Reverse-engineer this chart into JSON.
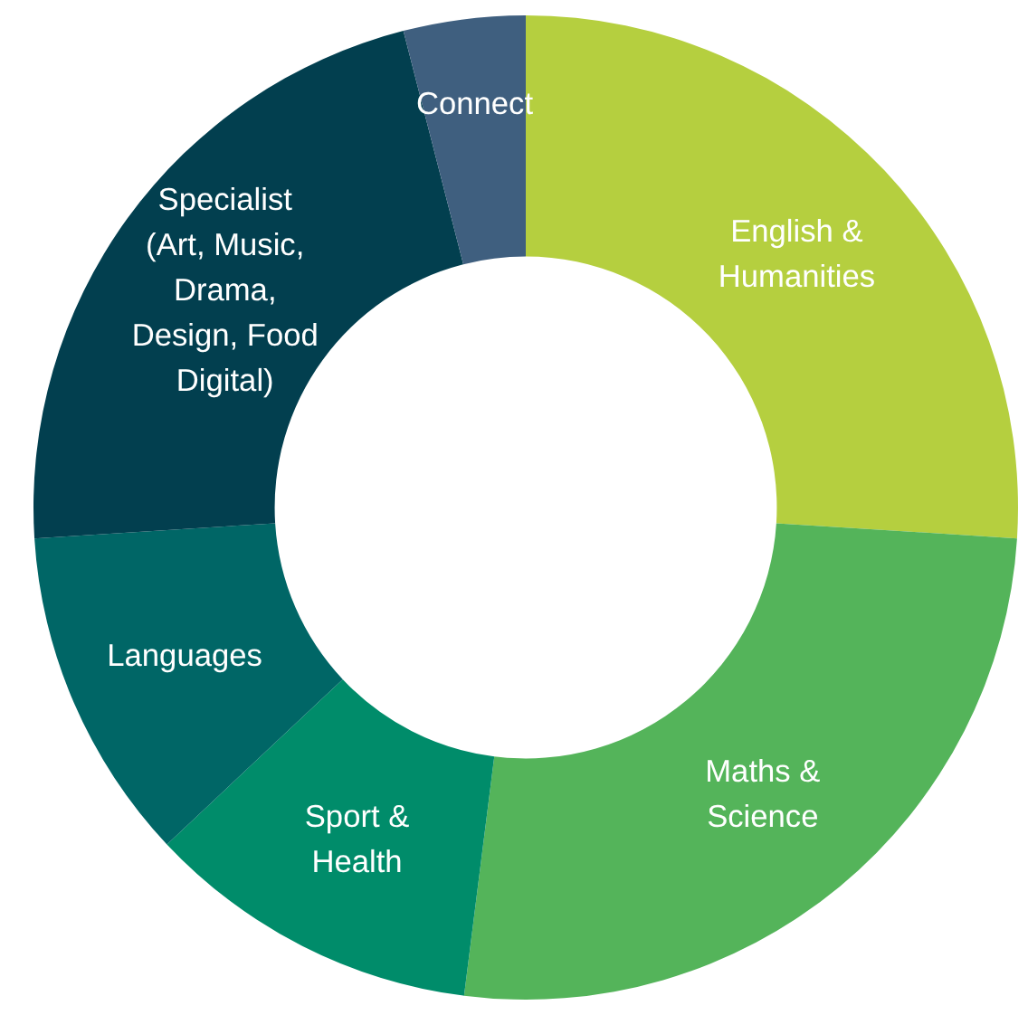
{
  "chart_data": {
    "type": "donut",
    "categories": [
      "English &\nHumanities",
      "Maths &\nScience",
      "Sport &\nHealth",
      "Languages",
      "Specialist\n(Art, Music,\nDrama,\nDesign, Food\nDigital)",
      "Connect"
    ],
    "values": [
      26,
      26,
      11,
      11,
      22,
      4
    ],
    "colors": [
      "#b5cf3f",
      "#54b45a",
      "#008c6a",
      "#006666",
      "#023f4f",
      "#3f5f7f"
    ]
  }
}
